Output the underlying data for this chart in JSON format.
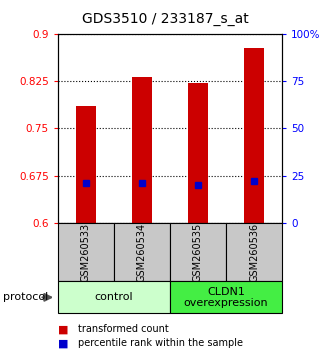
{
  "title": "GDS3510 / 233187_s_at",
  "samples": [
    "GSM260533",
    "GSM260534",
    "GSM260535",
    "GSM260536"
  ],
  "red_values": [
    0.785,
    0.832,
    0.822,
    0.878
  ],
  "blue_values": [
    0.663,
    0.663,
    0.66,
    0.667
  ],
  "ylim_left": [
    0.6,
    0.9
  ],
  "ylim_right": [
    0,
    100
  ],
  "yticks_left": [
    0.6,
    0.675,
    0.75,
    0.825,
    0.9
  ],
  "yticks_right": [
    0,
    25,
    50,
    75,
    100
  ],
  "ytick_labels_left": [
    "0.6",
    "0.675",
    "0.75",
    "0.825",
    "0.9"
  ],
  "ytick_labels_right": [
    "0",
    "25",
    "50",
    "75",
    "100%"
  ],
  "groups": [
    {
      "label": "control",
      "samples": [
        0,
        1
      ],
      "color": "#ccffcc"
    },
    {
      "label": "CLDN1\noverexpression",
      "samples": [
        2,
        3
      ],
      "color": "#44ee44"
    }
  ],
  "bar_color": "#cc0000",
  "marker_color": "#0000cc",
  "sample_bg_color": "#c8c8c8",
  "plot_bg": "#ffffff",
  "bar_width": 0.35,
  "title_fontsize": 10,
  "tick_fontsize": 7.5,
  "sample_fontsize": 7,
  "group_fontsize": 8,
  "legend_fontsize": 7
}
